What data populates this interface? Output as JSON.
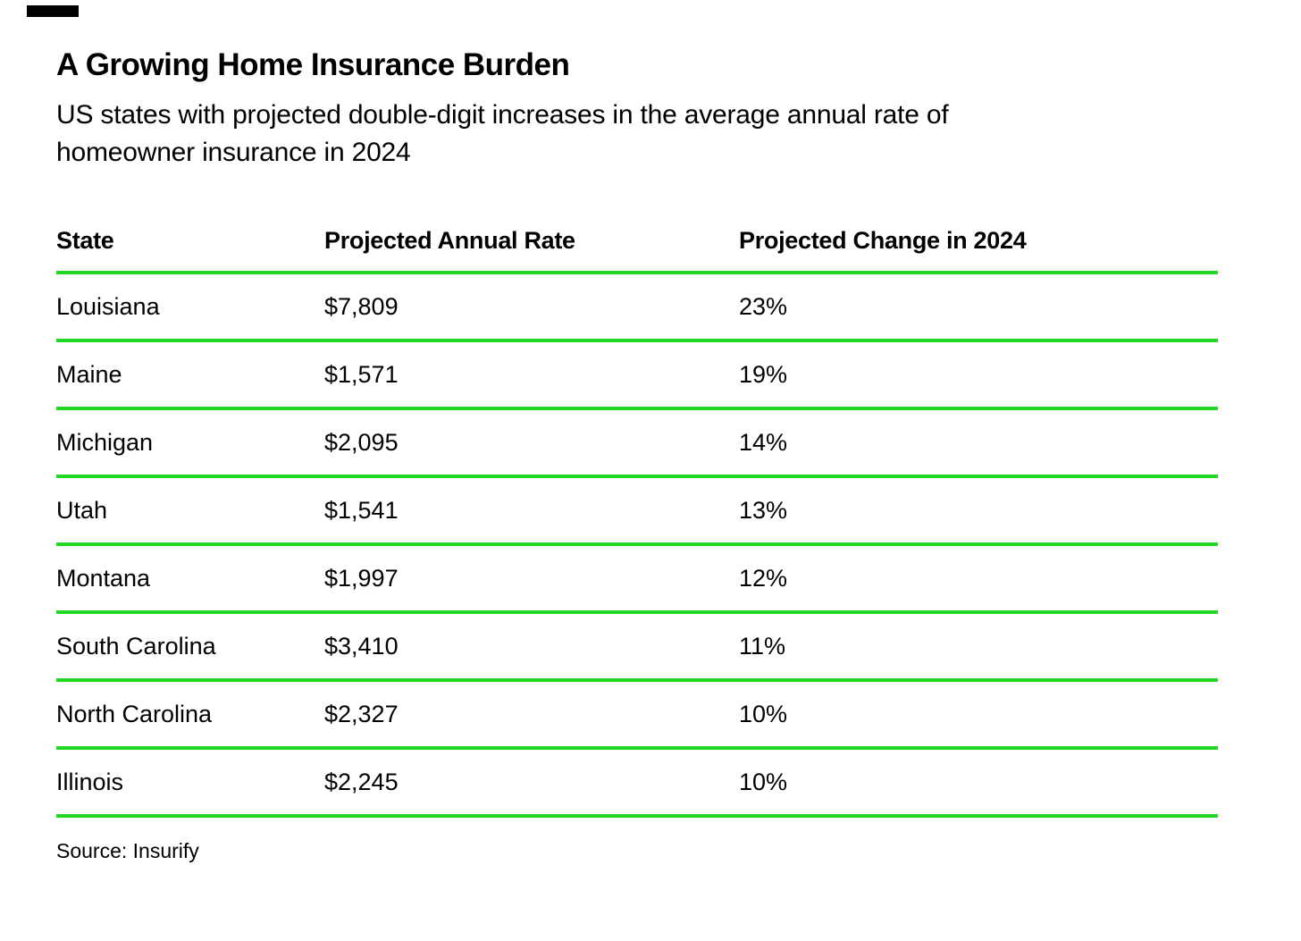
{
  "colors": {
    "background": "#ffffff",
    "text": "#000000",
    "rule_green": "#22d622",
    "brand_tag": "#000000"
  },
  "decoration": {
    "brand_tag_icon": "black-bar"
  },
  "header": {
    "title": "A Growing Home Insurance Burden",
    "subtitle_line1": "US states with projected double-digit increases in the average annual rate of",
    "subtitle_line2": "homeowner insurance in 2024"
  },
  "table": {
    "columns": [
      "State",
      "Projected Annual Rate",
      "Projected Change in 2024"
    ],
    "rows": [
      {
        "state": "Louisiana",
        "rate": "$7,809",
        "change": "23%"
      },
      {
        "state": "Maine",
        "rate": "$1,571",
        "change": "19%"
      },
      {
        "state": "Michigan",
        "rate": "$2,095",
        "change": "14%"
      },
      {
        "state": "Utah",
        "rate": "$1,541",
        "change": "13%"
      },
      {
        "state": "Montana",
        "rate": "$1,997",
        "change": "12%"
      },
      {
        "state": "South Carolina",
        "rate": "$3,410",
        "change": "11%"
      },
      {
        "state": "North Carolina",
        "rate": "$2,327",
        "change": "10%"
      },
      {
        "state": "Illinois",
        "rate": "$2,245",
        "change": "10%"
      }
    ]
  },
  "footer": {
    "source": "Source: Insurify"
  },
  "chart_data": {
    "type": "table",
    "title": "A Growing Home Insurance Burden",
    "subtitle": "US states with projected double-digit increases in the average annual rate of homeowner insurance in 2024",
    "columns": [
      "State",
      "Projected Annual Rate",
      "Projected Change in 2024"
    ],
    "categories": [
      "Louisiana",
      "Maine",
      "Michigan",
      "Utah",
      "Montana",
      "South Carolina",
      "North Carolina",
      "Illinois"
    ],
    "series": [
      {
        "name": "Projected Annual Rate (USD)",
        "values": [
          7809,
          1571,
          2095,
          1541,
          1997,
          3410,
          2327,
          2245
        ]
      },
      {
        "name": "Projected Change in 2024 (%)",
        "values": [
          23,
          19,
          14,
          13,
          12,
          11,
          10,
          10
        ]
      }
    ],
    "source": "Source: Insurify",
    "layout": {
      "grid": "horizontal green rules between rows",
      "legend": "none"
    }
  }
}
